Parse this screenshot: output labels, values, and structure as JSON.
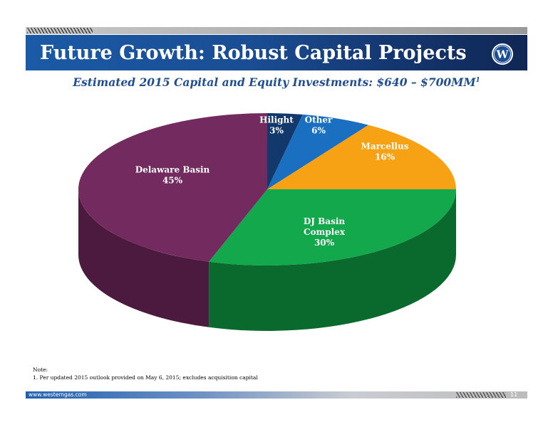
{
  "header": {
    "title": "Future Growth: Robust Capital Projects",
    "subtitle": "Estimated 2015 Capital and Equity Investments: $640 – $700MM",
    "subtitle_footnote": "1"
  },
  "logo": {
    "icon": "western-gas-w-logo-icon",
    "letter": "W"
  },
  "chart_data": {
    "type": "pie",
    "title": "Estimated 2015 Capital and Equity Investments: $640 – $700MM",
    "slices": [
      {
        "label": "Hilight",
        "value": 3,
        "value_label": "3%",
        "color": "#13386b",
        "side_color": "#0b2447"
      },
      {
        "label": "Other",
        "value": 6,
        "value_label": "6%",
        "color": "#1a6fc1",
        "side_color": "#0f4c8a"
      },
      {
        "label": "Marcellus",
        "value": 16,
        "value_label": "16%",
        "color": "#f7a214",
        "side_color": "#b5740a"
      },
      {
        "label": "DJ Basin Complex",
        "value": 30,
        "value_label": "30%",
        "color": "#12a84b",
        "side_color": "#0a6a2e"
      },
      {
        "label": "Delaware Basin",
        "value": 45,
        "value_label": "45%",
        "color": "#732b5f",
        "side_color": "#4d1a3f"
      }
    ]
  },
  "note": {
    "heading": "Note:",
    "items": [
      "1.   Per updated 2015 outlook provided on May 6, 2015; excludes acquisition capital"
    ]
  },
  "footer": {
    "url": "www.westerngas.com",
    "page_number": "11"
  }
}
